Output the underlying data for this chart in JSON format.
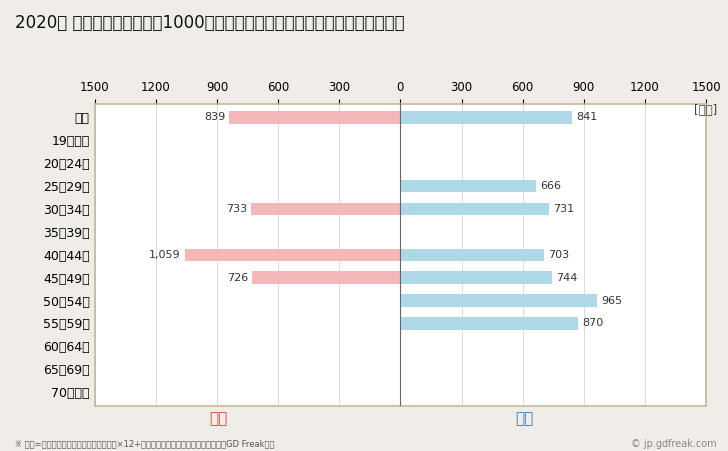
{
  "title": "2020年 民間企業（従業者数1000人以上）フルタイム労働者の男女別平均年収",
  "ylabel_unit": "[万円]",
  "categories": [
    "全体",
    "19歳以下",
    "20〜24歳",
    "25〜29歳",
    "30〜34歳",
    "35〜39歳",
    "40〜44歳",
    "45〜49歳",
    "50〜54歳",
    "55〜59歳",
    "60〜64歳",
    "65〜69歳",
    "70歳以上"
  ],
  "female_values": [
    839,
    0,
    0,
    0,
    733,
    0,
    1059,
    726,
    0,
    0,
    0,
    0,
    0
  ],
  "male_values": [
    841,
    0,
    0,
    666,
    731,
    0,
    703,
    744,
    965,
    870,
    0,
    0,
    0
  ],
  "female_color": "#f4b8b8",
  "male_color": "#add8e6",
  "female_label": "女性",
  "male_label": "男性",
  "female_label_color": "#d94040",
  "male_label_color": "#3377bb",
  "xlim": 1500,
  "background_color": "#f0ede8",
  "plot_bg_color": "#ffffff",
  "note": "※ 年収=「きまって支給する現金給与額」×12+「年間賞与その他特別給与額」としてGD Freak推計",
  "watermark": "© jp.gdfreak.com",
  "title_fontsize": 12,
  "bar_height": 0.55,
  "grid_color": "#cccccc",
  "border_color": "#c8b89a"
}
